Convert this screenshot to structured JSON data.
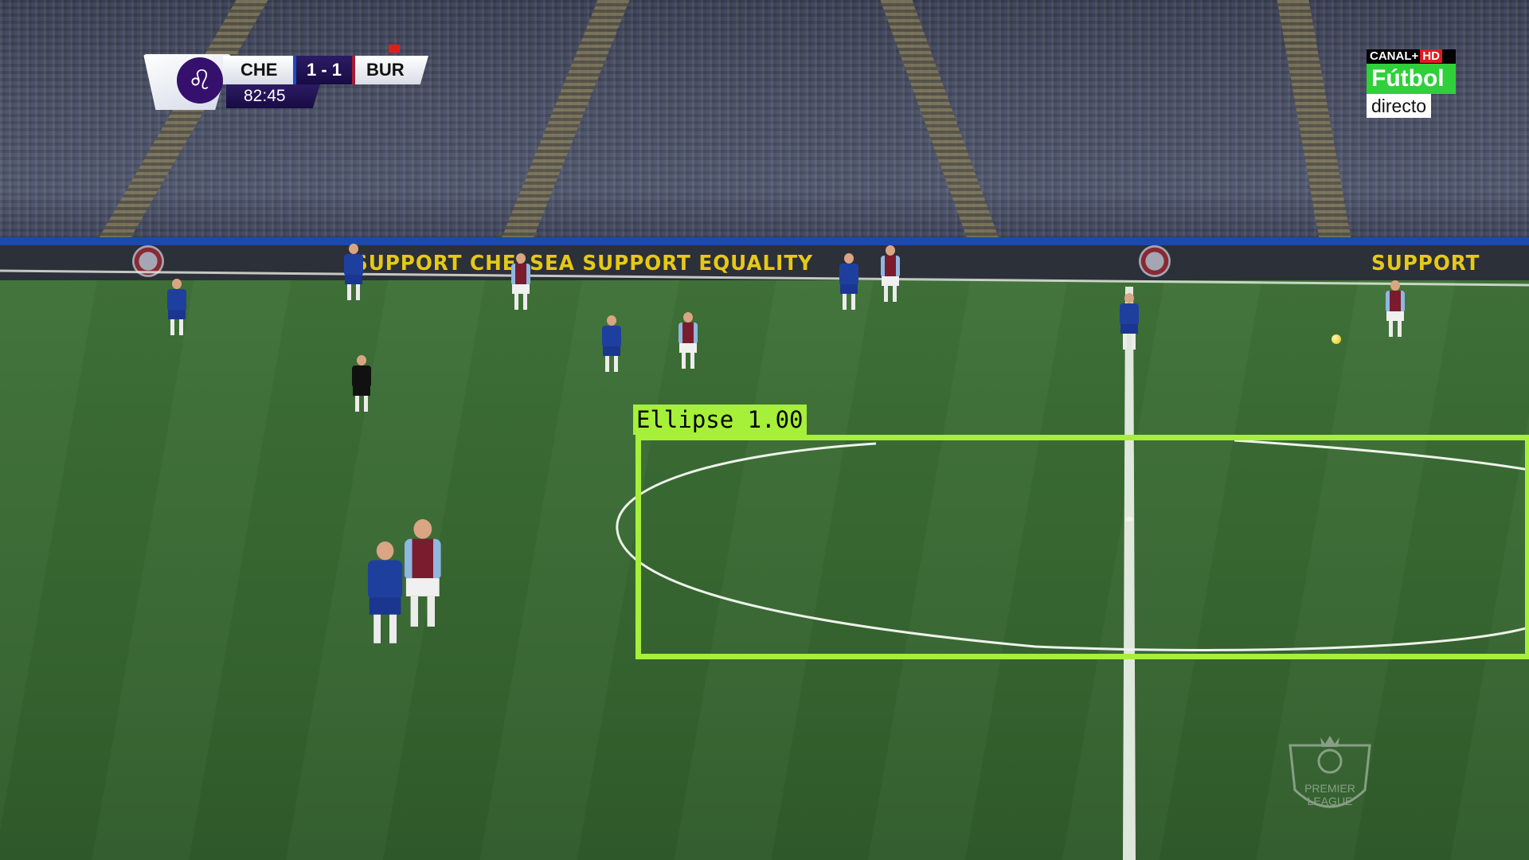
{
  "scoreboard": {
    "home_team": "CHE",
    "away_team": "BUR",
    "score": "1 - 1",
    "clock": "82:45",
    "colors": {
      "home": "#1c4bc4",
      "away": "#a31c33",
      "panel": "#2c1b63"
    },
    "crest_icon": "premier-league-lion-icon"
  },
  "broadcaster": {
    "brand": "CANAL+",
    "hd_badge": "HD",
    "channel": "Fútbol",
    "status": "directo",
    "colors": {
      "channel_bg": "#2fd03a",
      "hd_bg": "#e11a22"
    }
  },
  "ad_board": {
    "text_left": "SUPPORT CHELSEA SUPPORT EQUALITY",
    "text_right": "SUPPORT",
    "text_color": "#e6c819"
  },
  "watermark": {
    "text": "PREMIER\nLEAGUE",
    "icon": "premier-league-lion-icon"
  },
  "detection": {
    "label": "Ellipse 1.00",
    "color": "#a6f03a"
  }
}
